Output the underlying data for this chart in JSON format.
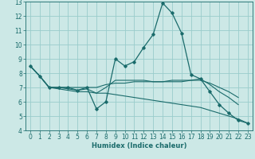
{
  "xlabel": "Humidex (Indice chaleur)",
  "xlim": [
    -0.5,
    23.5
  ],
  "ylim": [
    4,
    13
  ],
  "yticks": [
    4,
    5,
    6,
    7,
    8,
    9,
    10,
    11,
    12,
    13
  ],
  "xticks": [
    0,
    1,
    2,
    3,
    4,
    5,
    6,
    7,
    8,
    9,
    10,
    11,
    12,
    13,
    14,
    15,
    16,
    17,
    18,
    19,
    20,
    21,
    22,
    23
  ],
  "bg_color": "#cce8e6",
  "grid_color": "#99cccb",
  "line_color": "#1a6b6b",
  "lines": [
    {
      "x": [
        0,
        1,
        2,
        3,
        4,
        5,
        6,
        7,
        8,
        9,
        10,
        11,
        12,
        13,
        14,
        15,
        16,
        17,
        18,
        19,
        20,
        21,
        22,
        23
      ],
      "y": [
        8.5,
        7.8,
        7.0,
        7.0,
        7.0,
        6.8,
        7.0,
        5.5,
        6.0,
        9.0,
        8.5,
        8.8,
        9.8,
        10.7,
        12.9,
        12.2,
        10.8,
        7.9,
        7.6,
        6.7,
        5.8,
        5.2,
        4.7,
        4.5
      ],
      "marker": true
    },
    {
      "x": [
        0,
        1,
        2,
        3,
        4,
        5,
        6,
        7,
        8,
        9,
        10,
        11,
        12,
        13,
        14,
        15,
        16,
        17,
        18,
        19,
        20,
        21,
        22,
        23
      ],
      "y": [
        8.5,
        7.8,
        7.0,
        7.0,
        7.0,
        7.0,
        7.0,
        7.0,
        7.2,
        7.3,
        7.3,
        7.4,
        7.4,
        7.4,
        7.4,
        7.5,
        7.5,
        7.5,
        7.5,
        7.3,
        7.0,
        6.7,
        6.3,
        null
      ],
      "marker": false
    },
    {
      "x": [
        0,
        1,
        2,
        3,
        4,
        5,
        6,
        7,
        8,
        9,
        10,
        11,
        12,
        13,
        14,
        15,
        16,
        17,
        18,
        19,
        20,
        21,
        22,
        23
      ],
      "y": [
        8.5,
        7.8,
        7.0,
        7.0,
        6.9,
        6.8,
        6.9,
        6.6,
        7.0,
        7.5,
        7.5,
        7.5,
        7.5,
        7.4,
        7.4,
        7.4,
        7.4,
        7.5,
        7.6,
        7.2,
        6.7,
        6.3,
        5.8,
        null
      ],
      "marker": false
    },
    {
      "x": [
        0,
        1,
        2,
        3,
        4,
        5,
        6,
        7,
        8,
        9,
        10,
        11,
        12,
        13,
        14,
        15,
        16,
        17,
        18,
        19,
        20,
        21,
        22,
        23
      ],
      "y": [
        8.5,
        7.8,
        7.0,
        6.9,
        6.8,
        6.7,
        6.7,
        6.6,
        6.6,
        6.5,
        6.4,
        6.3,
        6.2,
        6.1,
        6.0,
        5.9,
        5.8,
        5.7,
        5.6,
        5.4,
        5.2,
        5.0,
        4.8,
        4.5
      ],
      "marker": false
    }
  ]
}
